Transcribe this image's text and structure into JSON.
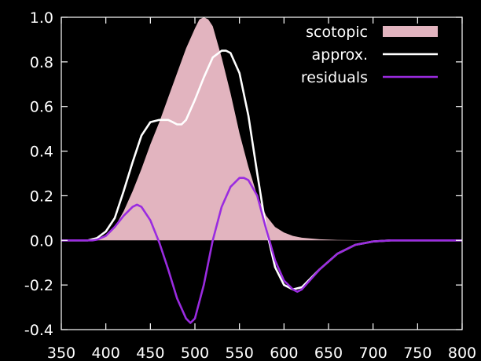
{
  "chart_data": {
    "type": "area",
    "title": "",
    "xlabel": "",
    "ylabel": "",
    "xlim": [
      350,
      800
    ],
    "ylim": [
      -0.4,
      1.0
    ],
    "x_ticks": [
      350,
      400,
      450,
      500,
      550,
      600,
      650,
      700,
      750,
      800
    ],
    "x_tick_labels": [
      "350",
      "400",
      "450",
      "500",
      "550",
      "600",
      "650",
      "700",
      "750",
      "800"
    ],
    "y_ticks": [
      -0.4,
      -0.2,
      0.0,
      0.2,
      0.4,
      0.6,
      0.8,
      1.0
    ],
    "y_tick_labels": [
      "-0.4",
      "-0.2",
      "0.0",
      "0.2",
      "0.4",
      "0.6",
      "0.8",
      "1.0"
    ],
    "grid": false,
    "legend_position": "top-right",
    "background": "#000000",
    "series": [
      {
        "name": "scotopic",
        "style": "filled-area",
        "color": "#e2b4bf",
        "x": [
          380,
          390,
          400,
          410,
          420,
          430,
          440,
          450,
          460,
          470,
          480,
          490,
          500,
          505,
          510,
          515,
          520,
          530,
          540,
          550,
          560,
          570,
          580,
          590,
          600,
          610,
          620,
          640,
          660,
          700,
          750,
          800
        ],
        "y": [
          0.0,
          0.005,
          0.025,
          0.06,
          0.13,
          0.22,
          0.32,
          0.43,
          0.53,
          0.64,
          0.75,
          0.86,
          0.95,
          0.99,
          1.0,
          0.99,
          0.96,
          0.82,
          0.66,
          0.48,
          0.33,
          0.2,
          0.11,
          0.06,
          0.035,
          0.02,
          0.012,
          0.005,
          0.002,
          0.0,
          0.0,
          0.0
        ]
      },
      {
        "name": "approx.",
        "style": "line",
        "color": "#ffffff",
        "x": [
          350,
          380,
          390,
          400,
          410,
          420,
          430,
          440,
          450,
          460,
          470,
          475,
          480,
          485,
          490,
          500,
          510,
          520,
          530,
          535,
          540,
          550,
          560,
          570,
          580,
          590,
          600,
          610,
          620,
          640,
          660,
          680,
          700,
          720,
          750,
          800
        ],
        "y": [
          0.0,
          0.0,
          0.01,
          0.04,
          0.1,
          0.22,
          0.35,
          0.47,
          0.53,
          0.54,
          0.54,
          0.53,
          0.52,
          0.52,
          0.54,
          0.63,
          0.73,
          0.82,
          0.85,
          0.85,
          0.84,
          0.75,
          0.56,
          0.3,
          0.05,
          -0.12,
          -0.2,
          -0.22,
          -0.21,
          -0.13,
          -0.06,
          -0.02,
          -0.005,
          0.0,
          0.0,
          0.0
        ]
      },
      {
        "name": "residuals",
        "style": "line",
        "color": "#9a2be0",
        "x": [
          350,
          385,
          390,
          400,
          410,
          420,
          430,
          435,
          440,
          450,
          460,
          470,
          480,
          490,
          495,
          500,
          510,
          520,
          530,
          540,
          550,
          555,
          560,
          570,
          580,
          590,
          600,
          610,
          615,
          620,
          640,
          660,
          680,
          700,
          720,
          750,
          800
        ],
        "y": [
          0.0,
          0.0,
          0.003,
          0.02,
          0.06,
          0.11,
          0.15,
          0.16,
          0.15,
          0.09,
          -0.01,
          -0.13,
          -0.26,
          -0.35,
          -0.37,
          -0.35,
          -0.2,
          0.0,
          0.15,
          0.24,
          0.28,
          0.28,
          0.27,
          0.2,
          0.05,
          -0.09,
          -0.18,
          -0.22,
          -0.23,
          -0.22,
          -0.13,
          -0.06,
          -0.02,
          -0.005,
          0.0,
          0.0,
          0.0
        ]
      }
    ]
  }
}
